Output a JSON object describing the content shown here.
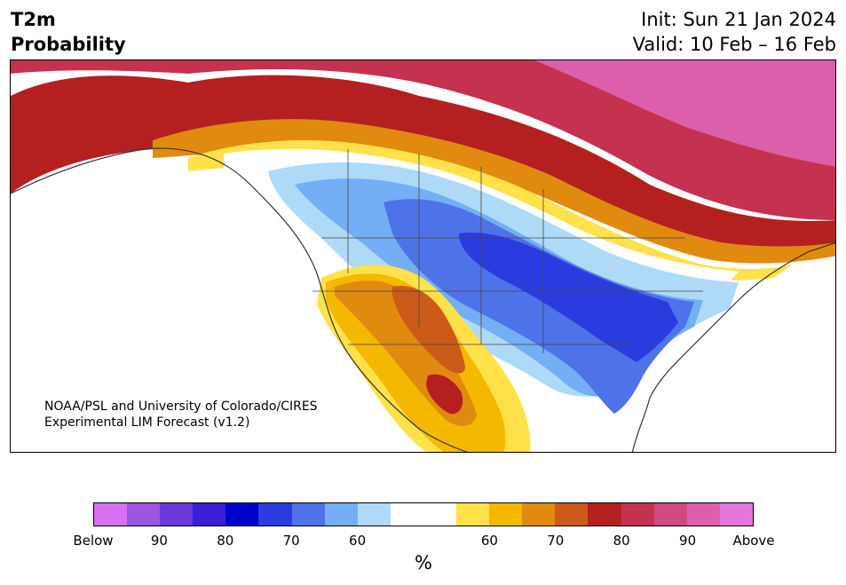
{
  "header": {
    "title_line1": "T2m",
    "title_line2": "Probability",
    "init": "Init: Sun 21 Jan 2024",
    "valid": "Valid: 10 Feb – 16 Feb"
  },
  "map": {
    "credit_line1": "NOAA/PSL and University of Colorado/CIRES",
    "credit_line2": "Experimental LIM Forecast (v1.2)"
  },
  "colorbar": {
    "unit": "%",
    "colors": [
      "#d86fee",
      "#9b55e0",
      "#6a38d8",
      "#3a1ed8",
      "#0000cc",
      "#2a3ce0",
      "#4e72e8",
      "#74aef4",
      "#aedaf8",
      "#ffffff",
      "#ffe14a",
      "#f4b800",
      "#e08a10",
      "#cc5a18",
      "#b42020",
      "#c43250",
      "#d04a80",
      "#dd5fac",
      "#e476dc"
    ],
    "tick_labels": [
      "Below",
      "90",
      "80",
      "70",
      "60",
      "60",
      "70",
      "80",
      "90",
      "Above"
    ]
  }
}
